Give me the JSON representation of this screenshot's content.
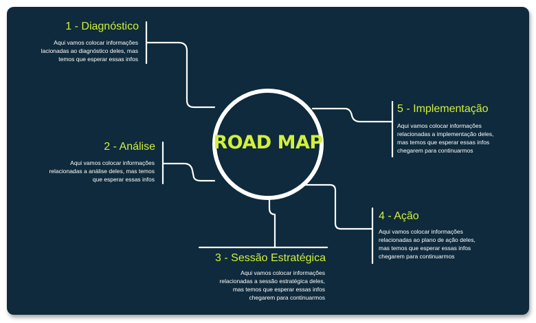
{
  "center": {
    "label": "ROAD MAP"
  },
  "steps": [
    {
      "title": "1 - Diagnóstico",
      "lines": [
        "Aqui vamos colocar informações",
        "lacionadas ao diagnóstico deles, mas",
        "temos que esperar essas infos"
      ]
    },
    {
      "title": "2 - Análise",
      "lines": [
        "Aqui vamos colocar informações",
        "relacionadas a análise deles, mas temos",
        "que esperar essas infos"
      ]
    },
    {
      "title": "3 - Sessão Estratégica",
      "lines": [
        "Aqui vamos colocar informações",
        "relacionadas a sessão estratégica deles,",
        "mas temos que esperar essas infos",
        "chegarem para continuarmos"
      ]
    },
    {
      "title": "4 - Ação",
      "lines": [
        "Aqui vamos colocar informações",
        "relacionadas ao plano de ação deles,",
        "mas temos que esperar essas infos",
        "chegarem para continuarmos"
      ]
    },
    {
      "title": "5 - Implementação",
      "lines": [
        "Aqui vamos colocar informações",
        "relacionadas a implementação deles,",
        "mas temos que esperar essas infos",
        "chegarem para continuarmos"
      ]
    }
  ],
  "colors": {
    "background": "#0e2a3c",
    "accent": "#d2f03a",
    "text": "#ffffff"
  }
}
